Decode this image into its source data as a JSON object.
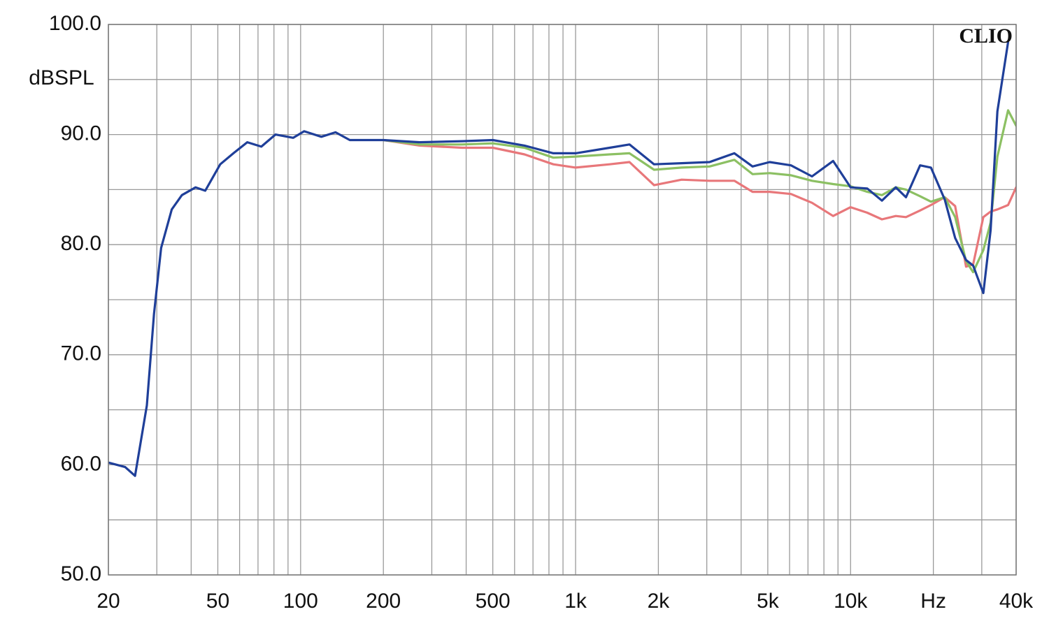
{
  "chart_data": {
    "type": "line",
    "ylabel": "dBSPL",
    "annotation": "CLIO",
    "xscale": "log",
    "grid": true,
    "x": [
      20,
      23,
      25,
      27.6,
      29.3,
      31.1,
      34,
      37,
      41.5,
      45,
      51,
      57,
      64,
      72,
      81,
      94,
      103,
      119,
      134,
      151,
      200,
      271,
      387,
      500,
      652,
      830,
      1000,
      1330,
      1570,
      1930,
      2430,
      3070,
      3780,
      4400,
      5080,
      6070,
      7240,
      8640,
      10000,
      11500,
      13000,
      14600,
      15900,
      17900,
      19600,
      22000,
      24000,
      26300,
      27900,
      30400,
      32300,
      34200,
      37400,
      40000
    ],
    "series": [
      {
        "color": "#e8777a",
        "values": [
          null,
          null,
          null,
          null,
          null,
          null,
          null,
          null,
          null,
          null,
          null,
          null,
          null,
          null,
          null,
          null,
          null,
          null,
          null,
          null,
          89.5,
          89.0,
          88.8,
          88.8,
          88.2,
          87.3,
          87.0,
          87.3,
          87.5,
          85.4,
          85.9,
          85.8,
          85.8,
          84.8,
          84.8,
          84.6,
          83.8,
          82.6,
          83.4,
          82.9,
          82.3,
          82.6,
          82.5,
          83.1,
          83.6,
          84.3,
          83.5,
          78.0,
          78.2,
          82.5,
          83.0,
          83.2,
          83.6,
          85.2
        ]
      },
      {
        "color": "#8cc063",
        "values": [
          null,
          null,
          null,
          null,
          null,
          null,
          null,
          null,
          null,
          null,
          null,
          null,
          null,
          null,
          null,
          null,
          null,
          null,
          null,
          null,
          89.5,
          89.1,
          89.1,
          89.2,
          88.8,
          87.9,
          88.0,
          88.2,
          88.3,
          86.8,
          87.0,
          87.1,
          87.7,
          86.4,
          86.5,
          86.3,
          85.8,
          85.5,
          85.3,
          84.8,
          84.5,
          85.2,
          85.0,
          84.4,
          83.9,
          84.3,
          82.5,
          78.5,
          77.5,
          79.5,
          82,
          88,
          92.2,
          90.8
        ]
      },
      {
        "color": "#1f3f99",
        "values": [
          60.2,
          59.8,
          59.0,
          65.4,
          73.7,
          79.7,
          83.2,
          84.5,
          85.2,
          84.9,
          87.3,
          88.3,
          89.3,
          88.9,
          90.0,
          89.7,
          90.3,
          89.8,
          90.2,
          89.5,
          89.5,
          89.3,
          89.4,
          89.5,
          89.0,
          88.3,
          88.3,
          88.8,
          89.1,
          87.3,
          87.4,
          87.5,
          88.3,
          87.1,
          87.5,
          87.2,
          86.2,
          87.6,
          85.2,
          85.1,
          84.0,
          85.2,
          84.3,
          87.2,
          87.0,
          84.1,
          80.6,
          78.6,
          78.1,
          75.6,
          81.3,
          92.1,
          98.4,
          null
        ]
      }
    ],
    "xlim": [
      20,
      40000
    ],
    "ylim": [
      50,
      100
    ],
    "xticks": [
      20,
      50,
      100,
      200,
      500,
      {
        "value": 1000,
        "label": "1k"
      },
      {
        "value": 2000,
        "label": "2k"
      },
      {
        "value": 5000,
        "label": "5k"
      },
      {
        "value": 10000,
        "label": "10k"
      },
      {
        "value": 20000,
        "label": "Hz"
      },
      {
        "value": 40000,
        "label": "40k"
      }
    ],
    "xgrid_minor": [
      30,
      40,
      60,
      70,
      80,
      90,
      300,
      400,
      600,
      700,
      800,
      900,
      3000,
      4000,
      6000,
      7000,
      8000,
      9000,
      30000
    ],
    "yticks": [
      {
        "value": 50,
        "label": "50.0"
      },
      {
        "value": 60,
        "label": "60.0"
      },
      {
        "value": 70,
        "label": "70.0"
      },
      {
        "value": 80,
        "label": "80.0"
      },
      {
        "value": 90,
        "label": "90.0"
      },
      {
        "value": 100,
        "label": "100.0"
      }
    ],
    "ygrid_minor": [
      55,
      65,
      75,
      85,
      95
    ]
  }
}
